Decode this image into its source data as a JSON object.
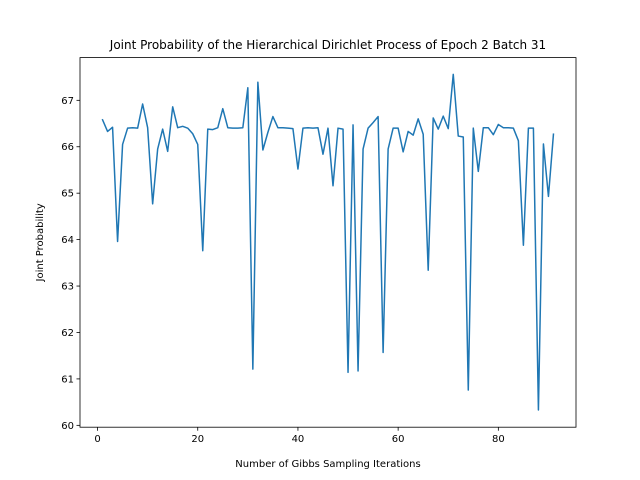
{
  "chart_data": {
    "type": "line",
    "title": "Joint Probability of the Hierarchical Dirichlet Process of Epoch 2 Batch 31",
    "xlabel": "Number of Gibbs Sampling Iterations",
    "ylabel": "Joint Probability",
    "xlim": [
      -3.5,
      95.5
    ],
    "ylim": [
      59.96,
      67.92
    ],
    "xticks": [
      0,
      20,
      40,
      60,
      80
    ],
    "yticks": [
      60,
      61,
      62,
      63,
      64,
      65,
      66,
      67
    ],
    "grid": false,
    "color": "#1f77b4",
    "series": [
      {
        "name": "",
        "x": [
          1,
          2,
          3,
          4,
          5,
          6,
          7,
          8,
          9,
          10,
          11,
          12,
          13,
          14,
          15,
          16,
          17,
          18,
          19,
          20,
          21,
          22,
          23,
          24,
          25,
          26,
          27,
          28,
          29,
          30,
          31,
          32,
          33,
          34,
          35,
          36,
          37,
          38,
          39,
          40,
          41,
          42,
          43,
          44,
          45,
          46,
          47,
          48,
          49,
          50,
          51,
          52,
          53,
          54,
          55,
          56,
          57,
          58,
          59,
          60,
          61,
          62,
          63,
          64,
          65,
          66,
          67,
          68,
          69,
          70,
          71,
          72,
          73,
          74,
          75,
          76,
          77,
          78,
          79,
          80,
          81,
          82,
          83,
          84,
          85,
          86,
          87,
          88,
          89,
          90,
          91
        ],
        "y": [
          66.58,
          66.33,
          66.42,
          63.96,
          66.05,
          66.4,
          66.41,
          66.4,
          66.92,
          66.41,
          64.77,
          65.95,
          66.38,
          65.9,
          66.86,
          66.41,
          66.44,
          66.4,
          66.28,
          66.05,
          63.76,
          66.38,
          66.37,
          66.41,
          66.82,
          66.41,
          66.4,
          66.4,
          66.41,
          67.27,
          61.21,
          67.39,
          65.93,
          66.31,
          66.65,
          66.41,
          66.41,
          66.4,
          66.39,
          65.52,
          66.4,
          66.41,
          66.4,
          66.41,
          65.84,
          66.4,
          65.16,
          66.4,
          66.38,
          61.14,
          66.47,
          61.17,
          65.95,
          66.4,
          66.52,
          66.65,
          61.57,
          65.95,
          66.4,
          66.4,
          65.89,
          66.33,
          66.25,
          66.6,
          66.27,
          63.34,
          66.62,
          66.38,
          66.66,
          66.39,
          67.56,
          66.23,
          66.21,
          60.76,
          66.4,
          65.47,
          66.41,
          66.41,
          66.26,
          66.48,
          66.41,
          66.41,
          66.4,
          66.13,
          63.88,
          66.4,
          66.4,
          60.33,
          66.06,
          64.93,
          66.27
        ]
      }
    ]
  }
}
